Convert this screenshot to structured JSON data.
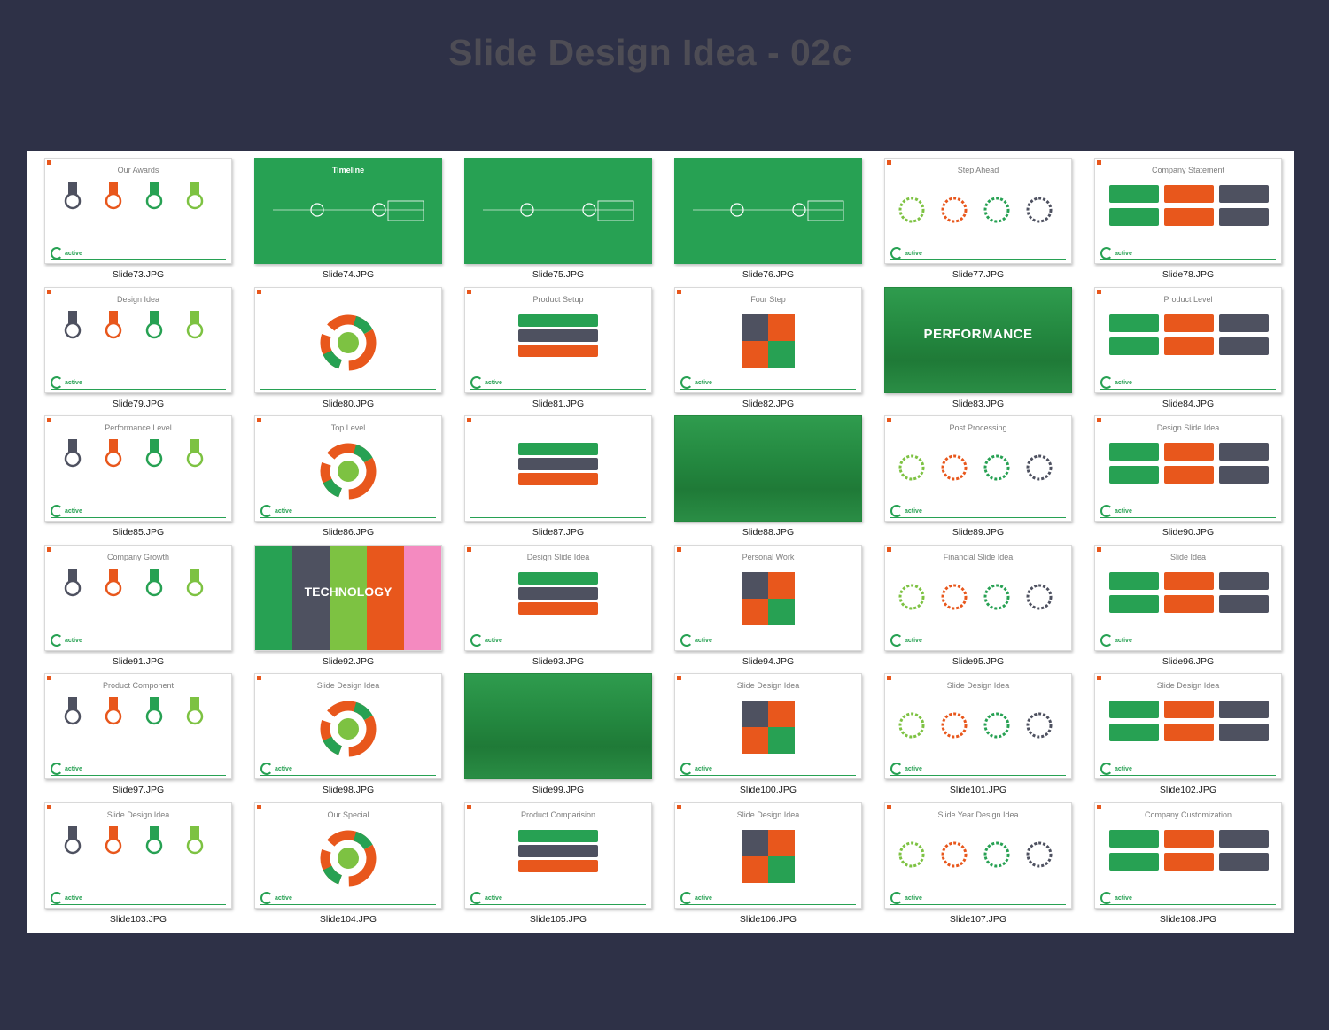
{
  "page": {
    "title": "Slide Design Idea - 02c"
  },
  "colors": {
    "background": "#2e3147",
    "panel": "#ffffff",
    "green": "#27a153",
    "lime": "#7dc242",
    "orange": "#e8571c",
    "gray": "#4e5160",
    "pink": "#f48ac0"
  },
  "slides": [
    {
      "file": "Slide73.JPG",
      "title": "Our Awards",
      "style": "white"
    },
    {
      "file": "Slide74.JPG",
      "title": "Timeline",
      "style": "green"
    },
    {
      "file": "Slide75.JPG",
      "title": "",
      "style": "green"
    },
    {
      "file": "Slide76.JPG",
      "title": "",
      "style": "green"
    },
    {
      "file": "Slide77.JPG",
      "title": "Step Ahead",
      "style": "white"
    },
    {
      "file": "Slide78.JPG",
      "title": "Company Statement",
      "style": "white"
    },
    {
      "file": "Slide79.JPG",
      "title": "Design Idea",
      "style": "white"
    },
    {
      "file": "Slide80.JPG",
      "title": "",
      "style": "white"
    },
    {
      "file": "Slide81.JPG",
      "title": "Product Setup",
      "style": "white"
    },
    {
      "file": "Slide82.JPG",
      "title": "Four Step",
      "style": "white"
    },
    {
      "file": "Slide83.JPG",
      "title": "",
      "style": "photo",
      "big": "PERFORMANCE"
    },
    {
      "file": "Slide84.JPG",
      "title": "Product Level",
      "style": "white"
    },
    {
      "file": "Slide85.JPG",
      "title": "Performance Level",
      "style": "white"
    },
    {
      "file": "Slide86.JPG",
      "title": "Top Level",
      "style": "white"
    },
    {
      "file": "Slide87.JPG",
      "title": "",
      "style": "white"
    },
    {
      "file": "Slide88.JPG",
      "title": "",
      "style": "photo"
    },
    {
      "file": "Slide89.JPG",
      "title": "Post Processing",
      "style": "white"
    },
    {
      "file": "Slide90.JPG",
      "title": "Design Slide Idea",
      "style": "white"
    },
    {
      "file": "Slide91.JPG",
      "title": "Company Growth",
      "style": "white"
    },
    {
      "file": "Slide92.JPG",
      "title": "",
      "style": "tech",
      "big": "TECHNOLOGY"
    },
    {
      "file": "Slide93.JPG",
      "title": "Design Slide Idea",
      "style": "white"
    },
    {
      "file": "Slide94.JPG",
      "title": "Personal Work",
      "style": "white"
    },
    {
      "file": "Slide95.JPG",
      "title": "Financial Slide Idea",
      "style": "white"
    },
    {
      "file": "Slide96.JPG",
      "title": "Slide Idea",
      "style": "white"
    },
    {
      "file": "Slide97.JPG",
      "title": "Product Component",
      "style": "white"
    },
    {
      "file": "Slide98.JPG",
      "title": "Slide Design Idea",
      "style": "white"
    },
    {
      "file": "Slide99.JPG",
      "title": "",
      "style": "photo"
    },
    {
      "file": "Slide100.JPG",
      "title": "Slide Design Idea",
      "style": "white"
    },
    {
      "file": "Slide101.JPG",
      "title": "Slide Design Idea",
      "style": "white"
    },
    {
      "file": "Slide102.JPG",
      "title": "Slide Design Idea",
      "style": "white"
    },
    {
      "file": "Slide103.JPG",
      "title": "Slide Design Idea",
      "style": "white"
    },
    {
      "file": "Slide104.JPG",
      "title": "Our Special",
      "style": "white"
    },
    {
      "file": "Slide105.JPG",
      "title": "Product Comparision",
      "style": "white"
    },
    {
      "file": "Slide106.JPG",
      "title": "Slide Design Idea",
      "style": "white"
    },
    {
      "file": "Slide107.JPG",
      "title": "Slide Year Design Idea",
      "style": "white"
    },
    {
      "file": "Slide108.JPG",
      "title": "Company Customization",
      "style": "white"
    }
  ],
  "logo_text": "active"
}
